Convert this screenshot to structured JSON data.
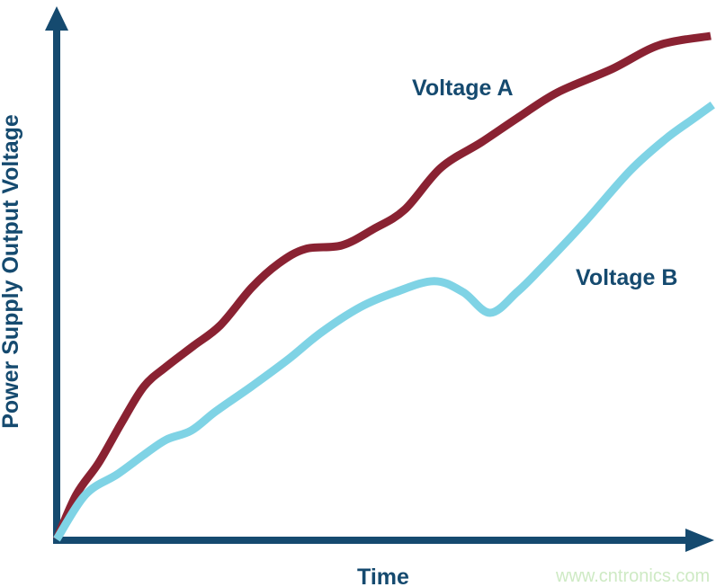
{
  "colors": {
    "background": "#ffffff",
    "axis": "#154A6F",
    "label_text": "#154A6F",
    "voltage_a": "#8A2232",
    "voltage_b": "#7FD3E5",
    "watermark": "#CEEAC4"
  },
  "watermark": {
    "text": "www.cntronics.com"
  },
  "chart_data": {
    "type": "line",
    "title": "",
    "xlabel": "Time",
    "ylabel": "Power Supply Output Voltage",
    "x_range": [
      0,
      100
    ],
    "y_range": [
      0,
      100
    ],
    "grid": false,
    "tick_labels": "none (qualitative axes with arrowheads, unlabeled)",
    "legend_position": "inline labels next to curves",
    "series": [
      {
        "name": "Voltage A",
        "color": "#8A2232",
        "description": "rises steeply from origin with two gentle plateaus, ends highest at top right",
        "points": [
          [
            0,
            0
          ],
          [
            3,
            8.9
          ],
          [
            6.4,
            15.2
          ],
          [
            9.9,
            23.2
          ],
          [
            13.3,
            30.4
          ],
          [
            16.7,
            34.3
          ],
          [
            20.8,
            38.4
          ],
          [
            24.9,
            42.5
          ],
          [
            29.7,
            50.0
          ],
          [
            33.8,
            54.8
          ],
          [
            37.9,
            57.7
          ],
          [
            43.4,
            58.4
          ],
          [
            48.2,
            61.6
          ],
          [
            53.0,
            65.5
          ],
          [
            58.5,
            73.8
          ],
          [
            64.7,
            78.9
          ],
          [
            70.4,
            83.9
          ],
          [
            76.3,
            88.8
          ],
          [
            84.5,
            93.4
          ],
          [
            91.8,
            98.2
          ],
          [
            99.6,
            100
          ]
        ]
      },
      {
        "name": "Voltage B",
        "color": "#7FD3E5",
        "description": "rises from origin below Voltage A, has a local peak then a dip, then climbs to top right",
        "points": [
          [
            0,
            0
          ],
          [
            4.4,
            8.9
          ],
          [
            9.2,
            12.9
          ],
          [
            13.3,
            16.8
          ],
          [
            16.7,
            19.8
          ],
          [
            20.5,
            21.6
          ],
          [
            24.2,
            25.4
          ],
          [
            29.7,
            30.4
          ],
          [
            35.2,
            35.7
          ],
          [
            40.3,
            41.1
          ],
          [
            46.2,
            46.1
          ],
          [
            51.6,
            49.1
          ],
          [
            57.5,
            51.3
          ],
          [
            61.9,
            49.1
          ],
          [
            66.0,
            45.0
          ],
          [
            70.1,
            49.1
          ],
          [
            73.6,
            53.6
          ],
          [
            80.4,
            63.0
          ],
          [
            87.3,
            73.2
          ],
          [
            92.7,
            79.5
          ],
          [
            96.8,
            83.4
          ],
          [
            99.9,
            86.3
          ]
        ]
      }
    ]
  }
}
